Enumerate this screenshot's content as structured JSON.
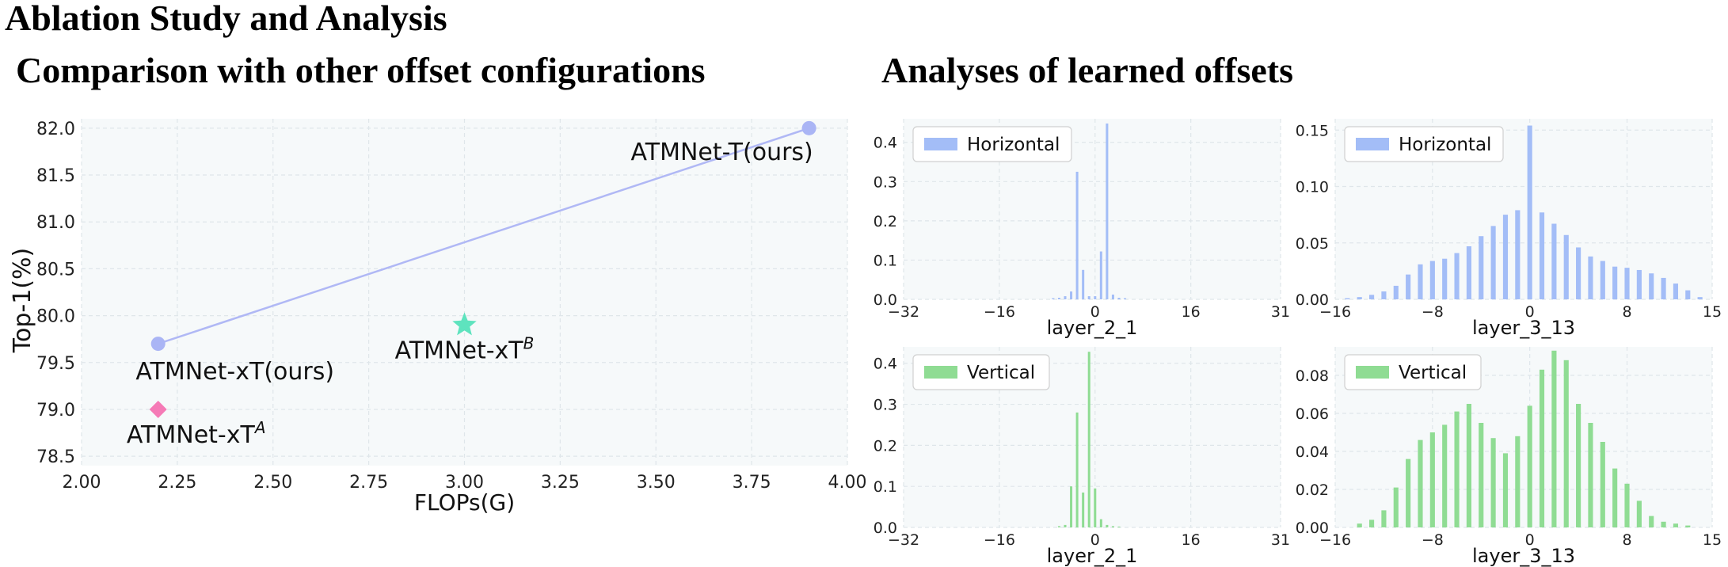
{
  "page": {
    "main_title": "Ablation Study and Analysis",
    "left_title": "Comparison with other offset configurations",
    "right_title": "Analyses of learned offsets"
  },
  "colors": {
    "blue": "#a3bdf7",
    "blue_line": "#b0b8f5",
    "scatter_blue": "#aab5f5",
    "green": "#8fdc93",
    "teal": "#5ee3be",
    "pink": "#f57ab6",
    "panel_bg": "#f6f9fa",
    "grid": "#dfe6ea"
  },
  "chart_data": [
    {
      "type": "scatter",
      "xlabel": "FLOPs(G)",
      "ylabel": "Top-1(%)",
      "xlim": [
        2.0,
        4.0
      ],
      "ylim": [
        78.4,
        82.1
      ],
      "xticks": [
        "2.00",
        "2.25",
        "2.50",
        "2.75",
        "3.00",
        "3.25",
        "3.50",
        "3.75",
        "4.00"
      ],
      "yticks": [
        "78.5",
        "79.0",
        "79.5",
        "80.0",
        "80.5",
        "81.0",
        "81.5",
        "82.0"
      ],
      "grid": true,
      "points": [
        {
          "label": "ATMNet-xT(ours)",
          "x": 2.2,
          "y": 79.7,
          "marker": "circle",
          "color": "#aab5f5"
        },
        {
          "label": "ATMNet-T(ours)",
          "x": 3.9,
          "y": 82.0,
          "marker": "circle",
          "color": "#aab5f5"
        },
        {
          "label": "ATMNet-xT",
          "sup": "B",
          "x": 3.0,
          "y": 79.9,
          "marker": "star",
          "color": "#5ee3be"
        },
        {
          "label": "ATMNet-xT",
          "sup": "A",
          "x": 2.2,
          "y": 79.0,
          "marker": "diamond",
          "color": "#f57ab6"
        }
      ],
      "line": {
        "from": [
          2.2,
          79.7
        ],
        "to": [
          3.9,
          82.0
        ]
      }
    },
    {
      "type": "bar",
      "legend": "Horizontal",
      "legend_position": "top-left",
      "xlabel": "layer_2_1",
      "xlim": [
        -32,
        31
      ],
      "ylim": [
        0,
        0.46
      ],
      "xticks": [
        "−32",
        "−16",
        "0",
        "16",
        "31"
      ],
      "yticks": [
        "0.0",
        "0.1",
        "0.2",
        "0.3",
        "0.4"
      ],
      "x": [
        -7,
        -6,
        -5,
        -4,
        -3,
        -2,
        -1,
        0,
        1,
        2,
        3,
        4,
        5
      ],
      "values": [
        0.003,
        0.004,
        0.008,
        0.02,
        0.325,
        0.075,
        0.008,
        0.008,
        0.122,
        0.448,
        0.012,
        0.004,
        0.003
      ]
    },
    {
      "type": "bar",
      "legend": "Horizontal",
      "legend_position": "top-left",
      "xlabel": "layer_3_13",
      "xlim": [
        -16,
        15
      ],
      "ylim": [
        0,
        0.16
      ],
      "xticks": [
        "−16",
        "−8",
        "0",
        "8",
        "15"
      ],
      "yticks": [
        "0.00",
        "0.05",
        "0.10",
        "0.15"
      ],
      "x": [
        -15,
        -14,
        -13,
        -12,
        -11,
        -10,
        -9,
        -8,
        -7,
        -6,
        -5,
        -4,
        -3,
        -2,
        -1,
        0,
        1,
        2,
        3,
        4,
        5,
        6,
        7,
        8,
        9,
        10,
        11,
        12,
        13,
        14
      ],
      "values": [
        0.001,
        0.002,
        0.004,
        0.007,
        0.012,
        0.022,
        0.031,
        0.034,
        0.036,
        0.041,
        0.047,
        0.056,
        0.065,
        0.075,
        0.079,
        0.154,
        0.077,
        0.067,
        0.057,
        0.046,
        0.038,
        0.034,
        0.029,
        0.028,
        0.026,
        0.023,
        0.019,
        0.014,
        0.008,
        0.002
      ]
    },
    {
      "type": "bar",
      "legend": "Vertical",
      "legend_position": "top-left",
      "xlabel": "layer_2_1",
      "xlim": [
        -32,
        31
      ],
      "ylim": [
        0,
        0.44
      ],
      "xticks": [
        "−32",
        "−16",
        "0",
        "16",
        "31"
      ],
      "yticks": [
        "0.0",
        "0.1",
        "0.2",
        "0.3",
        "0.4"
      ],
      "x": [
        -6,
        -5,
        -4,
        -3,
        -2,
        -1,
        0,
        1,
        2,
        3,
        4
      ],
      "values": [
        0.003,
        0.006,
        0.1,
        0.28,
        0.085,
        0.428,
        0.095,
        0.02,
        0.006,
        0.003,
        0.002
      ]
    },
    {
      "type": "bar",
      "legend": "Vertical",
      "legend_position": "top-left",
      "xlabel": "layer_3_13",
      "xlim": [
        -16,
        15
      ],
      "ylim": [
        0,
        0.095
      ],
      "xticks": [
        "−16",
        "−8",
        "0",
        "8",
        "15"
      ],
      "yticks": [
        "0.00",
        "0.02",
        "0.04",
        "0.06",
        "0.08"
      ],
      "x": [
        -14,
        -13,
        -12,
        -11,
        -10,
        -9,
        -8,
        -7,
        -6,
        -5,
        -4,
        -3,
        -2,
        -1,
        0,
        1,
        2,
        3,
        4,
        5,
        6,
        7,
        8,
        9,
        10,
        11,
        12,
        13
      ],
      "values": [
        0.002,
        0.004,
        0.009,
        0.021,
        0.036,
        0.046,
        0.05,
        0.054,
        0.061,
        0.065,
        0.055,
        0.047,
        0.039,
        0.048,
        0.064,
        0.083,
        0.093,
        0.088,
        0.065,
        0.055,
        0.045,
        0.031,
        0.023,
        0.014,
        0.006,
        0.003,
        0.002,
        0.001
      ]
    }
  ]
}
